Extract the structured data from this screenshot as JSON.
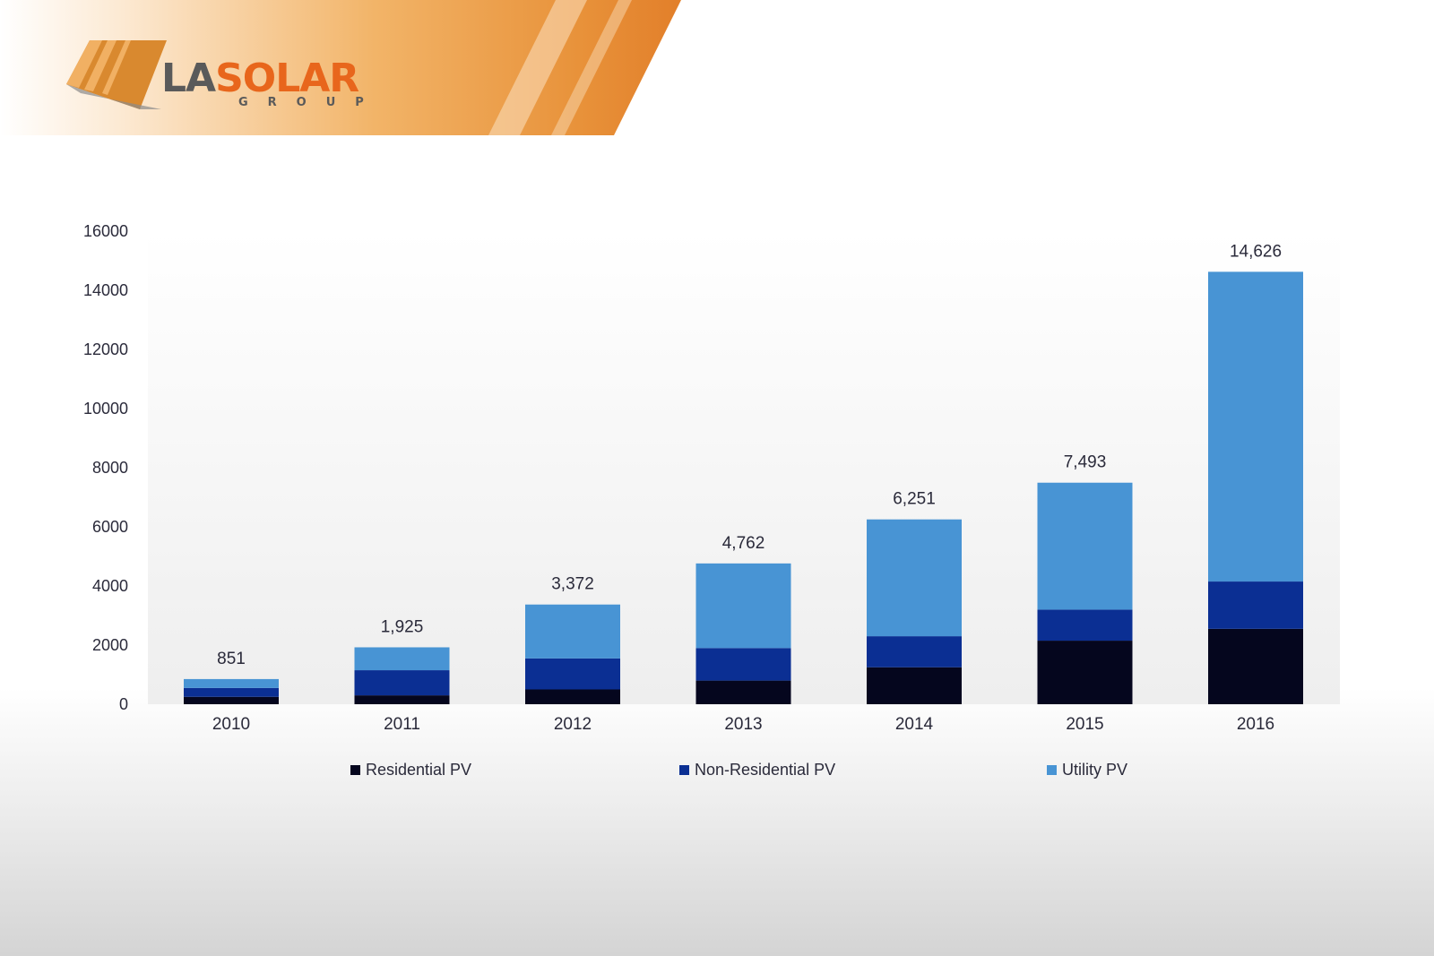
{
  "brand": {
    "logo_text_la": "LA",
    "logo_text_solar": "SOLAR",
    "logo_text_group": "GROUP"
  },
  "colors": {
    "residential": "#05061e",
    "non_residential": "#0b2f93",
    "utility": "#4894d4",
    "header_orange": "#e8923a"
  },
  "chart_data": {
    "type": "bar",
    "stacked": true,
    "title": "",
    "xlabel": "",
    "ylabel": "",
    "categories": [
      "2010",
      "2011",
      "2012",
      "2013",
      "2014",
      "2015",
      "2016"
    ],
    "series": [
      {
        "name": "Residential PV",
        "values": [
          250,
          300,
          500,
          800,
          1250,
          2150,
          2550
        ]
      },
      {
        "name": "Non-Residential PV",
        "values": [
          300,
          850,
          1050,
          1100,
          1050,
          1050,
          1600
        ]
      },
      {
        "name": "Utility PV",
        "values": [
          301,
          775,
          1822,
          2862,
          3951,
          4293,
          10476
        ]
      }
    ],
    "totals": [
      851,
      1925,
      3372,
      4762,
      6251,
      7493,
      14626
    ],
    "total_labels": [
      "851",
      "1,925",
      "3,372",
      "4,762",
      "6,251",
      "7,493",
      "14,626"
    ],
    "ylim": [
      0,
      16000
    ],
    "yticks": [
      "0",
      "2000",
      "4000",
      "6000",
      "8000",
      "10000",
      "12000",
      "14000",
      "16000"
    ],
    "grid": false,
    "legend_position": "bottom"
  }
}
